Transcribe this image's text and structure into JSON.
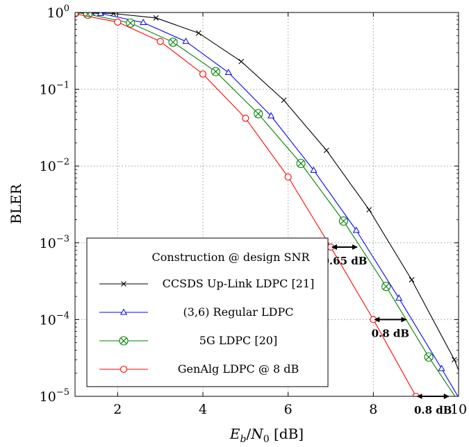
{
  "chart_data": {
    "type": "line",
    "xlabel": "Eb/N0 [dB]",
    "ylabel": "BLER",
    "xlim": [
      1,
      10
    ],
    "ylim": [
      1e-05,
      1
    ],
    "yscale": "log",
    "grid": true,
    "x_ticks": [
      2,
      4,
      6,
      8,
      10
    ],
    "y_ticks": [
      {
        "value": 1,
        "exp": "0"
      },
      {
        "value": 0.1,
        "exp": "−1"
      },
      {
        "value": 0.01,
        "exp": "−2"
      },
      {
        "value": 0.001,
        "exp": "−3"
      },
      {
        "value": 0.0001,
        "exp": "−4"
      },
      {
        "value": 1e-05,
        "exp": "−5"
      }
    ],
    "legend": {
      "title": "Construction @ design SNR",
      "placement": "bottom-left"
    },
    "series": [
      {
        "name": "CCSDS Up-Link LDPC [21]",
        "color": "#000000",
        "marker": "cross",
        "x": [
          1,
          1.4,
          1.9,
          2.9,
          3.9,
          4.9,
          5.9,
          6.9,
          7.9,
          8.9,
          9.9,
          10.3
        ],
        "y": [
          1.0,
          0.99,
          0.97,
          0.85,
          0.54,
          0.23,
          0.072,
          0.016,
          0.0027,
          0.00033,
          3e-05,
          8.5e-06
        ]
      },
      {
        "name": "(3,6) Regular LDPC",
        "color": "#0000ff",
        "marker": "triangle",
        "x": [
          1,
          1.6,
          2.6,
          3.6,
          4.6,
          5.6,
          6.6,
          7.6,
          8.6,
          9.6,
          10.1
        ],
        "y": [
          1.0,
          0.97,
          0.74,
          0.42,
          0.165,
          0.045,
          0.0088,
          0.00145,
          0.00019,
          2.3e-05,
          7.8e-06
        ]
      },
      {
        "name": "5G LDPC [20]",
        "color": "#008000",
        "marker": "circle-x",
        "x": [
          1,
          1.3,
          2.3,
          3.3,
          4.3,
          5.3,
          6.3,
          7.3,
          8.3,
          9.3,
          10.0
        ],
        "y": [
          1.0,
          0.95,
          0.73,
          0.41,
          0.17,
          0.048,
          0.0108,
          0.00192,
          0.00027,
          3.25e-05,
          8.5e-06
        ]
      },
      {
        "name": "GenAlg LDPC @ 8 dB",
        "color": "#ff0000",
        "marker": "circle",
        "x": [
          1,
          2,
          3,
          4,
          5,
          6,
          7,
          8,
          9,
          9.4
        ],
        "y": [
          0.96,
          0.75,
          0.42,
          0.158,
          0.042,
          0.0072,
          0.00088,
          0.0001,
          1e-05,
          4.5e-06
        ]
      }
    ],
    "annotations": [
      {
        "text": "0.65 dB",
        "x1": 7.0,
        "x2": 7.65,
        "y": 0.00088
      },
      {
        "text": "0.8 dB",
        "x1": 8.0,
        "x2": 8.8,
        "y": 0.0001
      },
      {
        "text": "0.8 dB",
        "x1": 9.0,
        "x2": 9.8,
        "y": 1e-05
      }
    ]
  }
}
